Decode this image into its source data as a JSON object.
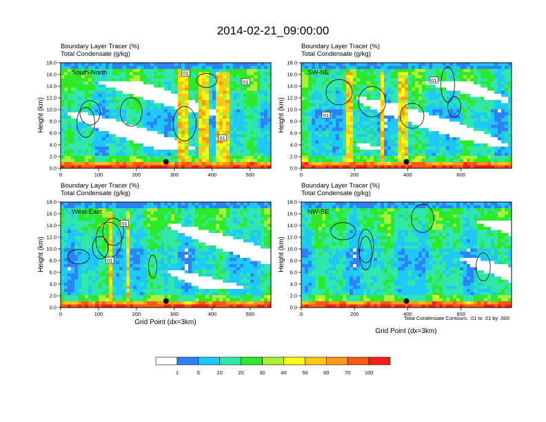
{
  "title": "2014-02-21_09:00:00",
  "colorbar": {
    "colors": [
      "#ffffff",
      "#2e82f8",
      "#1ec8f9",
      "#30e6a8",
      "#2ee92a",
      "#a8f03a",
      "#fafa14",
      "#fcc814",
      "#fa9a14",
      "#fa5a14",
      "#f51e1e"
    ],
    "labels": [
      "1",
      "5",
      "10",
      "20",
      "30",
      "40",
      "50",
      "60",
      "70",
      "100"
    ]
  },
  "chart_data": [
    {
      "type": "heatmap",
      "panel_label": "South-North",
      "title_line1": "Boundary Layer Tracer   (%)",
      "title_line2": "Total Condensate   (g/kg)",
      "ylabel": "Height (km)",
      "xlabel": "",
      "ylim": [
        0,
        18
      ],
      "y_ticks": [
        "0.0",
        "2.0",
        "4.0",
        "6.0",
        "8.0",
        "10.0",
        "12.0",
        "14.0",
        "16.0",
        "18.0"
      ],
      "xlim": [
        0,
        555
      ],
      "x_ticks": [
        "0",
        "100",
        "200",
        "300",
        "400",
        "500"
      ],
      "contour_labels": [
        {
          "text": "01",
          "x": 330,
          "y": 16.2
        },
        {
          "text": "01",
          "x": 488,
          "y": 14.7
        },
        {
          "text": "01",
          "x": 427,
          "y": 5.1
        }
      ],
      "marker": {
        "x": 278,
        "y": 1.1
      }
    },
    {
      "type": "heatmap",
      "panel_label": "SW-NE",
      "title_line1": "Boundary Layer Tracer   (%)",
      "title_line2": "Total Condensate   (g/kg)",
      "ylabel": "Height (km)",
      "xlabel": "",
      "ylim": [
        0,
        18
      ],
      "y_ticks": [
        "0.0",
        "2.0",
        "4.0",
        "6.0",
        "8.0",
        "10.0",
        "12.0",
        "14.0",
        "16.0",
        "18.0"
      ],
      "xlim": [
        0,
        790
      ],
      "x_ticks": [
        "0",
        "200",
        "400",
        "600"
      ],
      "contour_labels": [
        {
          "text": "01",
          "x": 93,
          "y": 9.0
        },
        {
          "text": "01",
          "x": 498,
          "y": 15.0
        }
      ],
      "marker": {
        "x": 395,
        "y": 1.1
      }
    },
    {
      "type": "heatmap",
      "panel_label": "West-East",
      "title_line1": "Boundary Layer Tracer   (%)",
      "title_line2": "Total Condensate   (g/kg)",
      "ylabel": "Height (km)",
      "xlabel": "Grid Point (dx=3km)",
      "ylim": [
        0,
        18
      ],
      "y_ticks": [
        "0.0",
        "2.0",
        "4.0",
        "6.0",
        "8.0",
        "10.0",
        "12.0",
        "14.0",
        "16.0",
        "18.0"
      ],
      "xlim": [
        0,
        555
      ],
      "x_ticks": [
        "0",
        "100",
        "200",
        "300",
        "400",
        "500"
      ],
      "contour_labels": [
        {
          "text": "01",
          "x": 168,
          "y": 14.3
        },
        {
          "text": "01",
          "x": 130,
          "y": 8.0
        }
      ],
      "marker": {
        "x": 278,
        "y": 1.1
      }
    },
    {
      "type": "heatmap",
      "panel_label": "NW-SE",
      "title_line1": "Boundary Layer Tracer   (%)",
      "title_line2": "Total Condensate   (g/kg)",
      "ylabel": "Height (km)",
      "xlabel": "Grid Point (dx=3km)",
      "ylim": [
        0,
        18
      ],
      "y_ticks": [
        "0.0",
        "2.0",
        "4.0",
        "6.0",
        "8.0",
        "10.0",
        "12.0",
        "14.0",
        "16.0",
        "18.0"
      ],
      "xlim": [
        0,
        790
      ],
      "x_ticks": [
        "0",
        "200",
        "400",
        "600"
      ],
      "contour_labels": [],
      "marker": {
        "x": 395,
        "y": 1.1
      },
      "footnote": "Total Condensate Contours: .01 to .01 by .000"
    }
  ]
}
